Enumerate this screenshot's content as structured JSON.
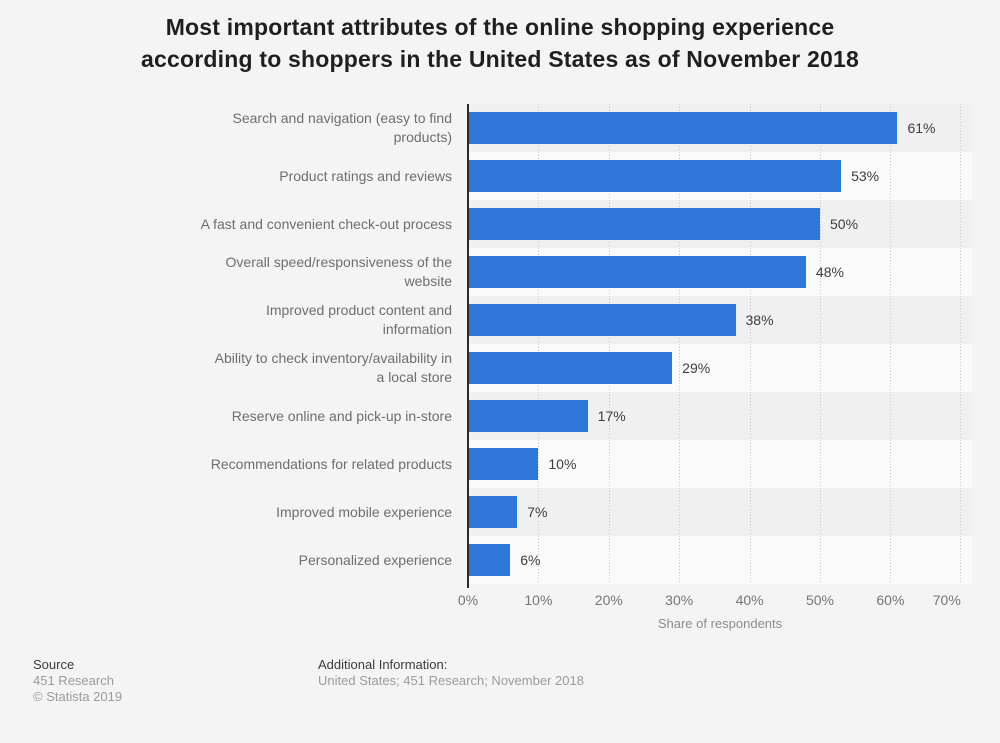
{
  "title": {
    "line1": "Most important attributes of the online shopping experience",
    "line2": "according to shoppers in the United States as of November 2018"
  },
  "chart_data": {
    "type": "bar",
    "orientation": "horizontal",
    "title": "Most important attributes of the online shopping experience according to shoppers in the United States as of November 2018",
    "categories": [
      "Search and navigation (easy to find products)",
      "Product ratings and reviews",
      "A fast and convenient check-out process",
      "Overall speed/responsiveness of the website",
      "Improved product content and information",
      "Ability to check inventory/availability in a local store",
      "Reserve online and pick-up in-store",
      "Recommendations for related products",
      "Improved mobile experience",
      "Personalized experience"
    ],
    "categories_wrapped": [
      [
        "Search and navigation (easy to find",
        "products)"
      ],
      [
        "Product ratings and reviews"
      ],
      [
        "A fast and convenient check-out process"
      ],
      [
        "Overall speed/responsiveness of the",
        "website"
      ],
      [
        "Improved product content and",
        "information"
      ],
      [
        "Ability to check inventory/availability in",
        "a local store"
      ],
      [
        "Reserve online and pick-up in-store"
      ],
      [
        "Recommendations for related products"
      ],
      [
        "Improved mobile experience"
      ],
      [
        "Personalized experience"
      ]
    ],
    "values": [
      61,
      53,
      50,
      48,
      38,
      29,
      17,
      10,
      7,
      6
    ],
    "unit": "%",
    "xlabel": "Share of respondents",
    "x_ticks": [
      "0%",
      "10%",
      "20%",
      "30%",
      "40%",
      "50%",
      "60%",
      "70%"
    ],
    "xlim": [
      0,
      70
    ],
    "grid": "vertical-dotted",
    "legend": "none",
    "bar_color": "#2e76d8"
  },
  "footer": {
    "source_heading": "Source",
    "source_lines": [
      "451 Research",
      "© Statista 2019"
    ],
    "additional_heading": "Additional Information:",
    "additional_text": "United States; 451 Research; November 2018"
  },
  "colors": {
    "background": "#f4f4f4",
    "bar": "#2e76d8",
    "row_stripe_odd": "#f0f0f0",
    "row_stripe_even": "#fafafa",
    "gridline": "#c8c8c8",
    "axis_line": "#2b2b2b",
    "title_text": "#1f1f1f",
    "category_text": "#6e6e6e",
    "value_text": "#3d3d3d"
  }
}
